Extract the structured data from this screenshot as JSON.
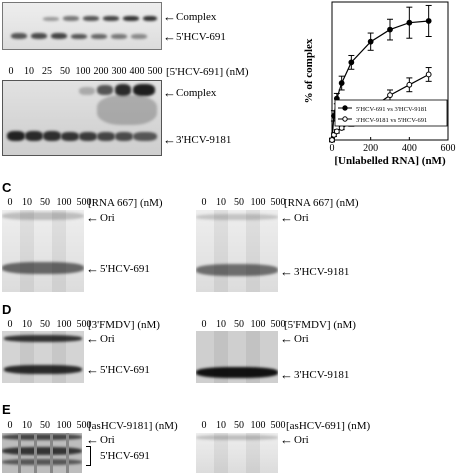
{
  "panel_a": {
    "top_gel_labels": {
      "complex": "Complex",
      "probe": "5'HCV-691"
    },
    "lanes": [
      "0",
      "10",
      "25",
      "50",
      "100",
      "200",
      "300",
      "400",
      "500"
    ],
    "conc_label": "[5'HCV-691] (nM)",
    "bottom_gel_labels": {
      "complex": "Complex",
      "probe": "3'HCV-9181"
    }
  },
  "panel_b": {
    "chart_data": {
      "type": "line",
      "xlabel": "[Unlabelled RNA] (nM)",
      "ylabel": "% of complex",
      "xlim": [
        0,
        600
      ],
      "ylim": [
        0,
        80
      ],
      "x_ticks": [
        "0",
        "200",
        "400",
        "600"
      ],
      "series": [
        {
          "name": "5'HCV-691 vs 3'HCV-9181",
          "marker": "filled-circle",
          "x": [
            0,
            10,
            25,
            50,
            100,
            200,
            300,
            400,
            500
          ],
          "y": [
            0,
            14,
            24,
            33,
            45,
            57,
            64,
            68,
            69
          ],
          "err": [
            1,
            3,
            3,
            4,
            4,
            5,
            6,
            9,
            9
          ]
        },
        {
          "name": "3'HCV-9181 vs 5'HCV-691",
          "marker": "open-circle",
          "x": [
            0,
            10,
            25,
            50,
            100,
            200,
            300,
            400,
            500
          ],
          "y": [
            0,
            3,
            5,
            7,
            10,
            18,
            26,
            32,
            38
          ],
          "err": [
            1,
            1,
            1,
            1,
            2,
            3,
            3,
            4,
            4
          ]
        }
      ]
    }
  },
  "panel_c": {
    "letter": "C",
    "lanes": [
      "0",
      "10",
      "50",
      "100",
      "500"
    ],
    "left": {
      "conc_label": "[RNA 667] (nM)",
      "ori": "Ori",
      "probe": "5'HCV-691"
    },
    "right": {
      "conc_label": "[RNA 667] (nM)",
      "ori": "Ori",
      "probe": "3'HCV-9181"
    }
  },
  "panel_d": {
    "letter": "D",
    "lanes": [
      "0",
      "10",
      "50",
      "100",
      "500"
    ],
    "left": {
      "conc_label": "[3'FMDV] (nM)",
      "ori": "Ori",
      "probe": "5'HCV-691"
    },
    "right": {
      "conc_label": "[5'FMDV] (nM)",
      "ori": "Ori",
      "probe": "3'HCV-9181"
    }
  },
  "panel_e": {
    "letter": "E",
    "lanes": [
      "0",
      "10",
      "50",
      "100",
      "500"
    ],
    "left": {
      "conc_label": "[asHCV-9181] (nM)",
      "ori": "Ori",
      "probe": "5'HCV-691"
    },
    "right": {
      "conc_label": "[asHCV-691] (nM)",
      "ori": "Ori"
    }
  }
}
